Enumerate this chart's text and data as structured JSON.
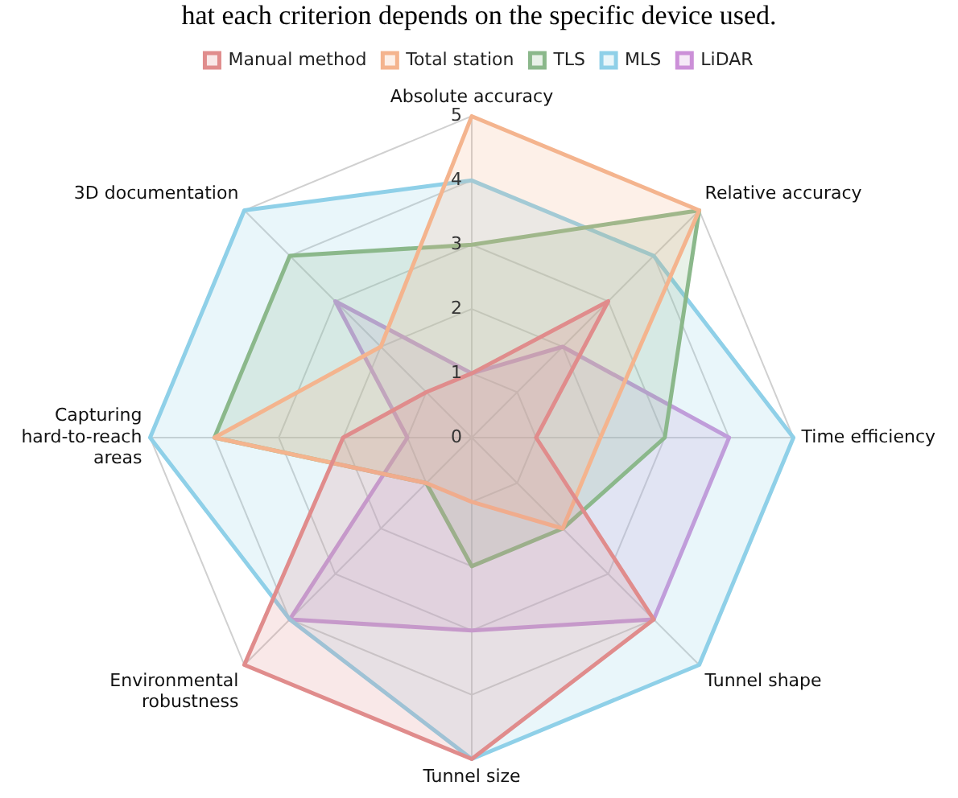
{
  "chart_data": {
    "type": "radar",
    "annotations": [
      "hat each criterion depends on the specific device used."
    ],
    "categories": [
      "Absolute accuracy",
      "Relative accuracy",
      "Time efficiency",
      "Tunnel shape",
      "Tunnel size",
      "Environmental robustness",
      "Capturing hard-to-reach areas",
      "3D documentation"
    ],
    "series": [
      {
        "name": "Manual method",
        "color": "#e08c8c",
        "values": [
          1,
          3,
          1,
          4,
          5,
          5,
          2,
          1
        ]
      },
      {
        "name": "Total station",
        "color": "#f4b48e",
        "values": [
          5,
          5,
          2,
          2,
          1,
          1,
          4,
          2
        ]
      },
      {
        "name": "TLS",
        "color": "#8bb88b",
        "values": [
          3,
          5,
          3,
          2,
          2,
          1,
          4,
          4
        ]
      },
      {
        "name": "MLS",
        "color": "#8fd0e8",
        "values": [
          4,
          4,
          5,
          5,
          5,
          4,
          5,
          5
        ]
      },
      {
        "name": "LiDAR",
        "color": "#cc90d8",
        "values": [
          1,
          2,
          4,
          4,
          3,
          4,
          1,
          3
        ]
      }
    ],
    "ylim": [
      0,
      5
    ],
    "yticks": [
      0,
      1,
      2,
      3,
      4,
      5
    ],
    "grid": true,
    "legend": "top",
    "marker": "none",
    "line_style": "solid"
  }
}
